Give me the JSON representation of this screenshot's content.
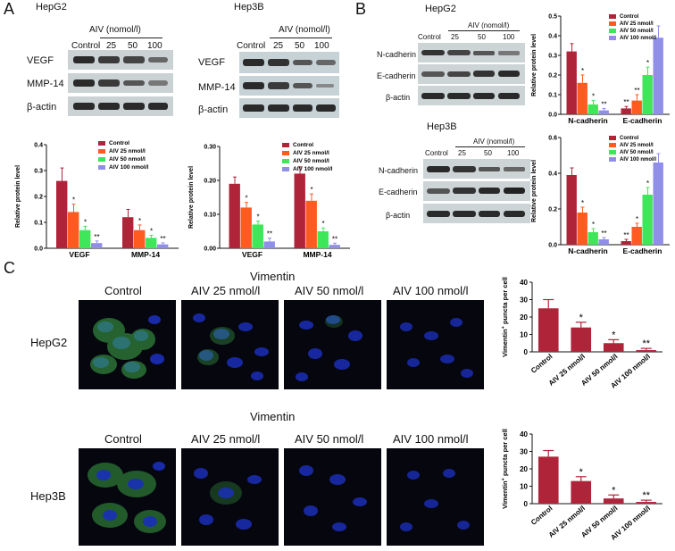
{
  "panels": {
    "a": {
      "letter": "A",
      "hepg2": {
        "cell": "HepG2",
        "dose_header": "AIV (nomol/l)",
        "lanes": [
          "Control",
          "25",
          "50",
          "100"
        ],
        "bands": [
          "VEGF",
          "MMP-14",
          "β-actin"
        ]
      },
      "hep3b": {
        "cell": "Hep3B",
        "dose_header": "AIV (nomol/l)",
        "lanes": [
          "Control",
          "25",
          "50",
          "100"
        ],
        "bands": [
          "VEGF",
          "MMP-14",
          "β-actin"
        ]
      }
    },
    "b": {
      "letter": "B",
      "hepg2": {
        "cell": "HepG2",
        "dose_header": "AIV (nomol/l)",
        "lanes": [
          "Control",
          "25",
          "50",
          "100"
        ],
        "bands": [
          "N-cadherin",
          "E-cadherin",
          "β-actin"
        ]
      },
      "hep3b": {
        "cell": "Hep3B",
        "dose_header": "AIV (nomol/l)",
        "lanes": [
          "Control",
          "25",
          "50",
          "100"
        ],
        "bands": [
          "N-cadherin",
          "E-cadherin",
          "β-actin"
        ]
      }
    },
    "c": {
      "letter": "C",
      "hepg2": {
        "title": "Vimentin",
        "cell": "HepG2",
        "columns": [
          "Control",
          "AIV 25 nmol/l",
          "AIV 50 nmol/l",
          "AIV 100 nmol/l"
        ]
      },
      "hep3b": {
        "title": "Vimentin",
        "cell": "Hep3B",
        "columns": [
          "Control",
          "AIV 25 nmol/l",
          "AIV 50 nmol/l",
          "AIV 100 nmol/l"
        ]
      }
    }
  },
  "colors": {
    "control": "#b0243a",
    "aiv25": "#ff5a1f",
    "aiv50": "#3ee65a",
    "aiv100": "#8f8fe8",
    "vimentin_bar": "#b0243a"
  },
  "chart_data": [
    {
      "id": "a-hepg2",
      "type": "bar",
      "categories": [
        "VEGF",
        "MMP-14"
      ],
      "ylabel": "Relative protein level",
      "ylim": [
        0,
        0.4
      ],
      "yticks": [
        "0.0",
        "0.1",
        "0.2",
        "0.3",
        "0.4"
      ],
      "legend": "top-right",
      "series": [
        {
          "name": "Control",
          "values": [
            0.26,
            0.12
          ],
          "errors": [
            0.05,
            0.03
          ],
          "sig": [
            "",
            ""
          ]
        },
        {
          "name": "AIV 25 nmol/l",
          "values": [
            0.14,
            0.07
          ],
          "errors": [
            0.03,
            0.02
          ],
          "sig": [
            "*",
            "*"
          ]
        },
        {
          "name": "AIV 50 nmol/l",
          "values": [
            0.07,
            0.04
          ],
          "errors": [
            0.015,
            0.01
          ],
          "sig": [
            "*",
            "*"
          ]
        },
        {
          "name": "AIV 100 nmol/l",
          "values": [
            0.02,
            0.015
          ],
          "errors": [
            0.008,
            0.006
          ],
          "sig": [
            "**",
            "**"
          ]
        }
      ]
    },
    {
      "id": "a-hep3b",
      "type": "bar",
      "categories": [
        "VEGF",
        "MMP-14"
      ],
      "ylabel": "Relative protein level",
      "ylim": [
        0,
        0.3
      ],
      "yticks": [
        "0.00",
        "0.10",
        "0.20",
        "0.30"
      ],
      "legend": "top-right",
      "series": [
        {
          "name": "Control",
          "values": [
            0.19,
            0.22
          ],
          "errors": [
            0.02,
            0.02
          ],
          "sig": [
            "",
            ""
          ]
        },
        {
          "name": "AIV 25 nmol/l",
          "values": [
            0.12,
            0.14
          ],
          "errors": [
            0.015,
            0.02
          ],
          "sig": [
            "*",
            "*"
          ]
        },
        {
          "name": "AIV 50 nmol/l",
          "values": [
            0.07,
            0.05
          ],
          "errors": [
            0.01,
            0.01
          ],
          "sig": [
            "*",
            "*"
          ]
        },
        {
          "name": "AIV 100 nmol/l",
          "values": [
            0.02,
            0.01
          ],
          "errors": [
            0.01,
            0.005
          ],
          "sig": [
            "**",
            "**"
          ]
        }
      ]
    },
    {
      "id": "b-hepg2",
      "type": "bar",
      "categories": [
        "N-cadherin",
        "E-cadherin"
      ],
      "ylabel": "Relative protein level",
      "ylim": [
        0,
        0.5
      ],
      "yticks": [
        "0.0",
        "0.1",
        "0.2",
        "0.3",
        "0.4",
        "0.5"
      ],
      "legend": "top-right",
      "series": [
        {
          "name": "Control",
          "values": [
            0.32,
            0.03
          ],
          "errors": [
            0.04,
            0.01
          ],
          "sig": [
            "",
            "**"
          ]
        },
        {
          "name": "AIV 25 nmol/l",
          "values": [
            0.16,
            0.07
          ],
          "errors": [
            0.04,
            0.03
          ],
          "sig": [
            "*",
            "**"
          ]
        },
        {
          "name": "AIV 50 nmol/l",
          "values": [
            0.05,
            0.2
          ],
          "errors": [
            0.02,
            0.04
          ],
          "sig": [
            "*",
            "*"
          ]
        },
        {
          "name": "AIV 100 nmol/l",
          "values": [
            0.02,
            0.39
          ],
          "errors": [
            0.01,
            0.06
          ],
          "sig": [
            "**",
            ""
          ]
        }
      ]
    },
    {
      "id": "b-hep3b",
      "type": "bar",
      "categories": [
        "N-cadherin",
        "E-cadherin"
      ],
      "ylabel": "Relative protein level",
      "ylim": [
        0,
        0.6
      ],
      "yticks": [
        "0.0",
        "0.2",
        "0.4",
        "0.6"
      ],
      "legend": "top-right",
      "series": [
        {
          "name": "Control",
          "values": [
            0.39,
            0.02
          ],
          "errors": [
            0.04,
            0.01
          ],
          "sig": [
            "",
            "**"
          ]
        },
        {
          "name": "AIV 25 nmol/l",
          "values": [
            0.18,
            0.1
          ],
          "errors": [
            0.03,
            0.02
          ],
          "sig": [
            "*",
            "*"
          ]
        },
        {
          "name": "AIV 50 nmol/l",
          "values": [
            0.07,
            0.28
          ],
          "errors": [
            0.02,
            0.04
          ],
          "sig": [
            "*",
            "*"
          ]
        },
        {
          "name": "AIV 100 nmol/l",
          "values": [
            0.03,
            0.46
          ],
          "errors": [
            0.01,
            0.05
          ],
          "sig": [
            "**",
            ""
          ]
        }
      ]
    },
    {
      "id": "c-hepg2",
      "type": "bar",
      "categories": [
        "Control",
        "AIV 25 nmol/l",
        "AIV 50 nmol/l",
        "AIV 100 nmol/l"
      ],
      "ylabel_main": "Vimentin",
      "ylabel_sup": "+",
      "ylabel_rest": " puncta per cell",
      "ylim": [
        0,
        40
      ],
      "yticks": [
        "0",
        "10",
        "20",
        "30",
        "40"
      ],
      "values": [
        25,
        14,
        5,
        1
      ],
      "errors": [
        5,
        3,
        2,
        1
      ],
      "sig": [
        "",
        "*",
        "*",
        "**"
      ]
    },
    {
      "id": "c-hep3b",
      "type": "bar",
      "categories": [
        "Control",
        "AIV 25 nmol/l",
        "AIV 50 nmol/l",
        "AIV 100 nmol/l"
      ],
      "ylabel_main": "Vimentin",
      "ylabel_sup": "+",
      "ylabel_rest": " puncta per cell",
      "ylim": [
        0,
        40
      ],
      "yticks": [
        "0",
        "10",
        "20",
        "30",
        "40"
      ],
      "values": [
        27,
        13,
        3,
        1
      ],
      "errors": [
        3.5,
        2.5,
        2,
        1
      ],
      "sig": [
        "",
        "*",
        "*",
        "**"
      ]
    }
  ]
}
